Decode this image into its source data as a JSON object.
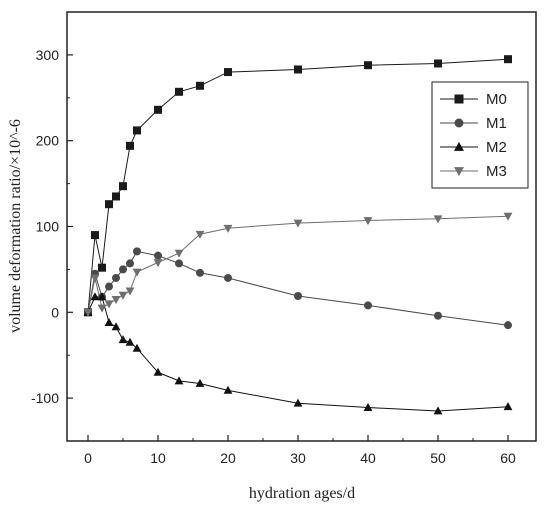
{
  "chart_data": {
    "type": "line",
    "xlabel": "hydration ages/d",
    "ylabel": "volume deformation ratio/×10^-6",
    "xlim": [
      -3,
      64
    ],
    "ylim": [
      -150,
      350
    ],
    "xticks": [
      0,
      10,
      20,
      30,
      40,
      50,
      60
    ],
    "yticks": [
      -100,
      0,
      100,
      200,
      300
    ],
    "xtick_labels": [
      "0",
      "10",
      "20",
      "30",
      "40",
      "50",
      "60"
    ],
    "ytick_labels": [
      "-100",
      "0",
      "100",
      "200",
      "300"
    ],
    "grid": false,
    "legend_position": "top-right",
    "series": [
      {
        "name": "M0",
        "marker": "square",
        "color": "#1a1a1a",
        "x": [
          0,
          1,
          2,
          3,
          4,
          5,
          6,
          7,
          10,
          13,
          16,
          20,
          30,
          40,
          50,
          60
        ],
        "y": [
          0,
          90,
          52,
          126,
          135,
          147,
          194,
          212,
          236,
          257,
          264,
          280,
          283,
          288,
          290,
          295
        ]
      },
      {
        "name": "M1",
        "marker": "circle",
        "color": "#4a4a4a",
        "x": [
          0,
          1,
          2,
          3,
          4,
          5,
          6,
          7,
          10,
          13,
          16,
          20,
          30,
          40,
          50,
          60
        ],
        "y": [
          0,
          45,
          18,
          30,
          40,
          50,
          57,
          71,
          66,
          57,
          46,
          40,
          19,
          8,
          -4,
          -15
        ]
      },
      {
        "name": "M2",
        "marker": "triangle-up",
        "color": "#111111",
        "x": [
          0,
          1,
          2,
          3,
          4,
          5,
          6,
          7,
          10,
          13,
          16,
          20,
          30,
          40,
          50,
          60
        ],
        "y": [
          0,
          18,
          18,
          -12,
          -17,
          -32,
          -35,
          -42,
          -70,
          -80,
          -83,
          -91,
          -106,
          -111,
          -115,
          -110
        ]
      },
      {
        "name": "M3",
        "marker": "triangle-down",
        "color": "#6e6e6e",
        "x": [
          0,
          1,
          2,
          3,
          4,
          5,
          6,
          7,
          10,
          13,
          16,
          20,
          30,
          40,
          50,
          60
        ],
        "y": [
          0,
          40,
          5,
          10,
          15,
          20,
          25,
          47,
          58,
          69,
          91,
          98,
          104,
          107,
          109,
          112
        ]
      }
    ]
  }
}
